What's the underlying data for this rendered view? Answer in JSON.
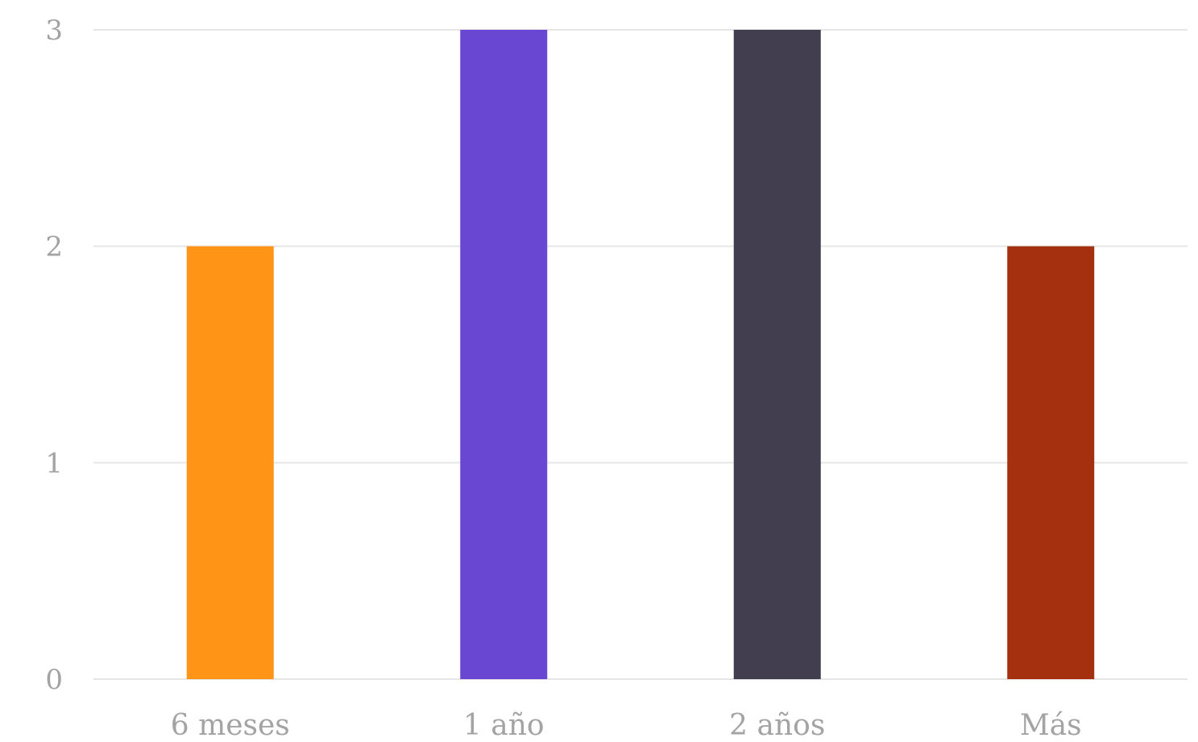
{
  "chart_data": {
    "type": "bar",
    "categories": [
      "6 meses",
      "1 año",
      "2 años",
      "Más"
    ],
    "values": [
      2,
      3,
      3,
      2
    ],
    "colors": [
      "#ff9417",
      "#6a47d3",
      "#423d4f",
      "#a53010"
    ],
    "title": "",
    "xlabel": "",
    "ylabel": "",
    "ylim": [
      0,
      3
    ],
    "yticks": [
      0,
      1,
      2,
      3
    ],
    "grid": true,
    "legend": "none",
    "tick_color": "#a3a3a3",
    "grid_color": "#e6e6e6"
  }
}
